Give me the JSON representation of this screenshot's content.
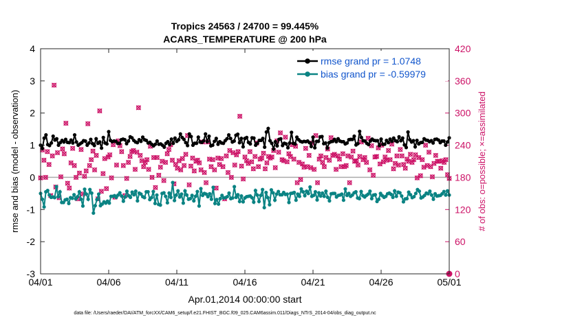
{
  "chart_data": {
    "type": "line",
    "title_line1": "Tropics 24563 / 24700 = 99.445%",
    "title_line2": "ACARS_TEMPERATURE @ 200 hPa",
    "xlabel": "Apr.01,2014 00:00:00 start",
    "ylabel_left": "rmse and bias (model - observation)",
    "ylabel_right": "# of obs: o=possible; ×=assimilated",
    "footer": "data file: /Users/raeder/DAI/ATM_forcXX/CAM6_setup/f.e21.FHIST_BGC.f09_025.CAM6assim.011/Diags_NTrS_2014-04/obs_diag_output.nc",
    "xlim_days": [
      0,
      30
    ],
    "ylim_left": [
      -3,
      4
    ],
    "ylim_right": [
      0,
      420
    ],
    "x_tick_labels": [
      "04/01",
      "04/06",
      "04/11",
      "04/16",
      "04/21",
      "04/26",
      "05/01"
    ],
    "x_tick_days": [
      0,
      5,
      10,
      15,
      20,
      25,
      30
    ],
    "y_left_ticks": [
      "-3",
      "-2",
      "-1",
      "0",
      "1",
      "2",
      "3",
      "4"
    ],
    "y_right_ticks": [
      "0",
      "60",
      "120",
      "180",
      "240",
      "300",
      "360",
      "420"
    ],
    "legend": {
      "rmse": "rmse grand pr = 1.0748",
      "bias": "bias grand pr = -0.59979"
    },
    "colors": {
      "rmse": "#000000",
      "bias": "#0a8383",
      "obs": "#cc1166",
      "legend_text": "#1155cc",
      "zero_line": "#aaaaaa"
    },
    "series": [
      {
        "name": "rmse",
        "axis": "left",
        "values": [
          1.0,
          0.9,
          1.22,
          1.32,
          1.02,
          0.99,
          1.07,
          1.28,
          1.16,
          1.2,
          1.0,
          1.08,
          1.15,
          1.1,
          1.18,
          1.09,
          1.08,
          1.16,
          1.07,
          1.32,
          1.1,
          1.0,
          1.04,
          1.08,
          1.14,
          1.13,
          1.0,
          1.07,
          1.18,
          1.05,
          0.99,
          1.2,
          1.06,
          1.1,
          0.91,
          1.24,
          1.07,
          1.04,
          1.42,
          1.15,
          1.11,
          1.13,
          1.12,
          1.06,
          1.06,
          1.17,
          1.19,
          1.17,
          1.05,
          1.13,
          1.26,
          1.23,
          1.15,
          1.1,
          1.08,
          1.17,
          1.12,
          1.25,
          1.17,
          1.15,
          1.07,
          1.09,
          1.03,
          0.98,
          1.03,
          1.13,
          1.03,
          1.04,
          1.0,
          0.94,
          1.06,
          1.11,
          1.02,
          1.19,
          1.06,
          1.22,
          1.12,
          1.17,
          1.35,
          1.24,
          1.18,
          1.08,
          0.99,
          1.35,
          1.27,
          1.0,
          1.06,
          1.06,
          1.25,
          1.1,
          1.09,
          1.14,
          1.35,
          1.11,
          1.28,
          0.98,
          1.0,
          1.12,
          1.21,
          1.03,
          1.11,
          1.07,
          1.06,
          1.14,
          1.2,
          1.32,
          1.21,
          1.1,
          1.13,
          1.31,
          1.34,
          1.08,
          1.21,
          0.95,
          1.21,
          1.24,
          1.09,
          1.04,
          1.23,
          1.22,
          1.0,
          1.06,
          1.15,
          1.15,
          1.21,
          0.94,
          1.41,
          1.52,
          1.14,
          1.06,
          0.88,
          1.11,
          0.98,
          1.18,
          1.2,
          0.99,
          1.06,
          1.04,
          0.92,
          1.07,
          1.4,
          1.06,
          1.04,
          1.25,
          1.17,
          1.12,
          1.1,
          1.12,
          1.11,
          1.13,
          1.08,
          0.96,
          1.25,
          0.92,
          1.12,
          1.12,
          1.26,
          1.27,
          1.05,
          1.07,
          0.91,
          1.08,
          1.11,
          1.12,
          1.18,
          1.11,
          1.2,
          1.13,
          1.11,
          1.11,
          1.04,
          1.07,
          1.17,
          1.18,
          1.18,
          1.28,
          1.01,
          1.05,
          1.43,
          1.24,
          1.14,
          1.13,
          1.06,
          1.02,
          1.13,
          1.19,
          1.15,
          1.14,
          1.14,
          0.99,
          1.19,
          1.03,
          1.03,
          1.15,
          1.08,
          1.19,
          1.12,
          1.22,
          1.14,
          1.11,
          1.26,
          1.14,
          1.22,
          1.01,
          0.93,
          1.41,
          1.17,
          1.1,
          1.14,
          0.95,
          1.15,
          1.04,
          1.08,
          1.09,
          1.2,
          1.16,
          1.15,
          1.11,
          1.14,
          1.07,
          1.18,
          1.19,
          1.16,
          1.08,
          1.13,
          1.13,
          1.0,
          1.1,
          1.23
        ]
      },
      {
        "name": "bias",
        "axis": "left",
        "values": [
          -0.5,
          -0.68,
          -0.92,
          -0.45,
          -0.41,
          -0.55,
          -0.62,
          -0.61,
          -0.63,
          -0.29,
          -0.6,
          -0.45,
          -0.78,
          -0.78,
          -0.7,
          -0.68,
          -0.81,
          -0.63,
          -0.65,
          -0.54,
          -0.67,
          -0.6,
          -0.45,
          -0.68,
          -0.89,
          -0.37,
          -0.52,
          -0.68,
          -0.38,
          -0.49,
          -1.11,
          -0.88,
          -0.69,
          -0.52,
          -0.88,
          -0.83,
          -0.76,
          -0.8,
          -0.74,
          -0.8,
          -0.59,
          -0.59,
          -0.57,
          -0.62,
          -0.55,
          -0.48,
          -0.58,
          -0.74,
          -0.61,
          -0.43,
          -0.57,
          -0.62,
          -0.46,
          -0.54,
          -0.43,
          -0.73,
          -0.49,
          -0.52,
          -0.6,
          -0.63,
          -0.45,
          -0.45,
          -0.69,
          -0.63,
          -0.44,
          -0.81,
          -0.55,
          -0.84,
          -0.86,
          -0.5,
          -0.48,
          -0.59,
          -0.79,
          -0.49,
          -0.62,
          -0.16,
          -0.72,
          -0.55,
          -0.42,
          -0.61,
          -0.52,
          -0.8,
          -0.42,
          -0.55,
          -0.68,
          -0.66,
          -0.56,
          -0.73,
          -0.59,
          -0.44,
          -0.89,
          -0.35,
          -0.56,
          -0.5,
          -0.52,
          -0.6,
          -0.51,
          -0.68,
          -0.31,
          -0.81,
          -0.69,
          -0.83,
          -0.66,
          -0.56,
          -0.64,
          -0.63,
          -0.6,
          -0.49,
          -0.66,
          -0.64,
          -0.29,
          -0.62,
          -0.54,
          -0.75,
          -0.58,
          -0.76,
          -0.64,
          -0.6,
          -0.59,
          -0.58,
          -0.63,
          -0.77,
          -0.41,
          -0.55,
          -0.75,
          -0.56,
          -0.38,
          -0.94,
          -0.47,
          -0.63,
          -0.85,
          -0.39,
          -0.48,
          -0.71,
          -0.52,
          -0.44,
          -0.54,
          -0.54,
          -0.47,
          -0.53,
          -0.52,
          -0.78,
          -0.5,
          -0.49,
          -0.47,
          -0.71,
          -0.52,
          -0.59,
          -0.36,
          -0.45,
          -0.57,
          -0.43,
          -0.5,
          -0.3,
          -0.59,
          -0.56,
          -0.45,
          -0.7,
          -0.48,
          -0.58,
          -0.49,
          -0.59,
          -0.43,
          -0.62,
          -0.73,
          -0.51,
          -0.5,
          -0.5,
          -0.61,
          -0.56,
          -0.55,
          -0.52,
          -0.71,
          -0.36,
          -0.56,
          -0.5,
          -0.59,
          -0.55,
          -0.48,
          -0.45,
          -0.64,
          -0.66,
          -0.44,
          -0.57,
          -0.61,
          -0.56,
          -0.52,
          -0.43,
          -0.66,
          -0.55,
          -0.54,
          -0.75,
          -0.68,
          -0.5,
          -0.57,
          -0.62,
          -0.59,
          -0.51,
          -0.49,
          -0.53,
          -0.62,
          -0.42,
          -0.59,
          -0.46,
          -0.48,
          -0.58,
          -0.76,
          -0.67,
          -0.66,
          -0.46,
          -0.54,
          -0.63,
          -0.6,
          -0.5,
          -0.38,
          -0.43,
          -0.64,
          -0.61,
          -0.56,
          -0.49,
          -0.51,
          -0.43,
          -0.55,
          -0.68,
          -0.51,
          -0.58,
          -0.57,
          -0.56,
          -0.51,
          -0.44,
          -0.55,
          -0.42,
          -0.55
        ]
      },
      {
        "name": "obs_possible",
        "axis": "right",
        "values": [
          179,
          231,
          212,
          180,
          228,
          204,
          146,
          220,
          352,
          162,
          226,
          142,
          181,
          233,
          224,
          281,
          169,
          160,
          207,
          234,
          202,
          180,
          140,
          188,
          232,
          149,
          182,
          192,
          280,
          202,
          213,
          229,
          194,
          221,
          140,
          304,
          154,
          187,
          215,
          159,
          218,
          222,
          179,
          241,
          143,
          203,
          248,
          239,
          228,
          202,
          146,
          178,
          208,
          219,
          228,
          230,
          195,
          227,
          310,
          221,
          211,
          200,
          208,
          213,
          195,
          238,
          180,
          217,
          161,
          217,
          184,
          199,
          210,
          174,
          208,
          224,
          232,
          241,
          212,
          168,
          204,
          197,
          211,
          194,
          215,
          202,
          223,
          258,
          166,
          201,
          216,
          192,
          210,
          212,
          207,
          194,
          246,
          189,
          170,
          246,
          214,
          200,
          213,
          194,
          160,
          216,
          204,
          215,
          200,
          140,
          220,
          189,
          230,
          180,
          226,
          203,
          222,
          228,
          294,
          201,
          177,
          218,
          211,
          206,
          228,
          209,
          196,
          219,
          244,
          200,
          214,
          216,
          225,
          196,
          207,
          219,
          216,
          218,
          230,
          198,
          248,
          227,
          263,
          213,
          211,
          255,
          209,
          224,
          219,
          241,
          214,
          238,
          170,
          208,
          176,
          205,
          199,
          234,
          200,
          221,
          198,
          244,
          195,
          258,
          170,
          214,
          220,
          208,
          200,
          217,
          233,
          212,
          254,
          221,
          223,
          195,
          220,
          214,
          200,
          224,
          200,
          202,
          220,
          170,
          218,
          229,
          210,
          211,
          203,
          219,
          246,
          213,
          217,
          208,
          253,
          194,
          239,
          184,
          218,
          219,
          235,
          205,
          240,
          209,
          218,
          212,
          230,
          213,
          242,
          196,
          206,
          220,
          203,
          232,
          220,
          204,
          197,
          214,
          210,
          223,
          208,
          213,
          222,
          179,
          217,
          183,
          213,
          199,
          240,
          202,
          227,
          200,
          181,
          206,
          221,
          210,
          210,
          197,
          211,
          208,
          213,
          185,
          178
        ]
      },
      {
        "name": "obs_assimilated",
        "axis": "right",
        "values": [
          179,
          231,
          212,
          180,
          228,
          204,
          146,
          220,
          352,
          162,
          226,
          142,
          181,
          233,
          224,
          281,
          169,
          160,
          207,
          234,
          202,
          180,
          140,
          188,
          232,
          149,
          182,
          192,
          280,
          202,
          213,
          229,
          194,
          221,
          140,
          304,
          154,
          187,
          215,
          159,
          218,
          222,
          179,
          241,
          143,
          203,
          248,
          239,
          228,
          202,
          146,
          178,
          208,
          219,
          228,
          230,
          195,
          227,
          310,
          221,
          211,
          200,
          208,
          213,
          195,
          238,
          180,
          217,
          161,
          217,
          184,
          199,
          210,
          174,
          208,
          224,
          232,
          241,
          212,
          168,
          204,
          197,
          211,
          194,
          215,
          202,
          223,
          258,
          166,
          201,
          216,
          192,
          210,
          212,
          207,
          194,
          246,
          189,
          170,
          246,
          214,
          200,
          213,
          194,
          160,
          216,
          204,
          215,
          200,
          140,
          220,
          189,
          230,
          180,
          226,
          203,
          222,
          228,
          294,
          201,
          177,
          218,
          211,
          206,
          228,
          209,
          196,
          219,
          244,
          200,
          214,
          216,
          225,
          196,
          207,
          219,
          216,
          218,
          230,
          198,
          248,
          227,
          263,
          213,
          211,
          255,
          209,
          224,
          219,
          241,
          214,
          238,
          170,
          208,
          176,
          205,
          199,
          234,
          200,
          221,
          198,
          244,
          195,
          258,
          170,
          214,
          220,
          208,
          200,
          217,
          233,
          212,
          254,
          221,
          223,
          195,
          220,
          214,
          200,
          224,
          200,
          202,
          220,
          170,
          218,
          229,
          210,
          211,
          203,
          219,
          246,
          213,
          217,
          208,
          253,
          194,
          239,
          184,
          218,
          219,
          235,
          205,
          240,
          209,
          218,
          212,
          230,
          213,
          242,
          196,
          206,
          220,
          203,
          232,
          220,
          204,
          197,
          214,
          210,
          223,
          208,
          213,
          222,
          179,
          217,
          183,
          213,
          199,
          240,
          202,
          227,
          200,
          181,
          206,
          221,
          210,
          210,
          197,
          211,
          208,
          213,
          185,
          178
        ]
      }
    ]
  }
}
